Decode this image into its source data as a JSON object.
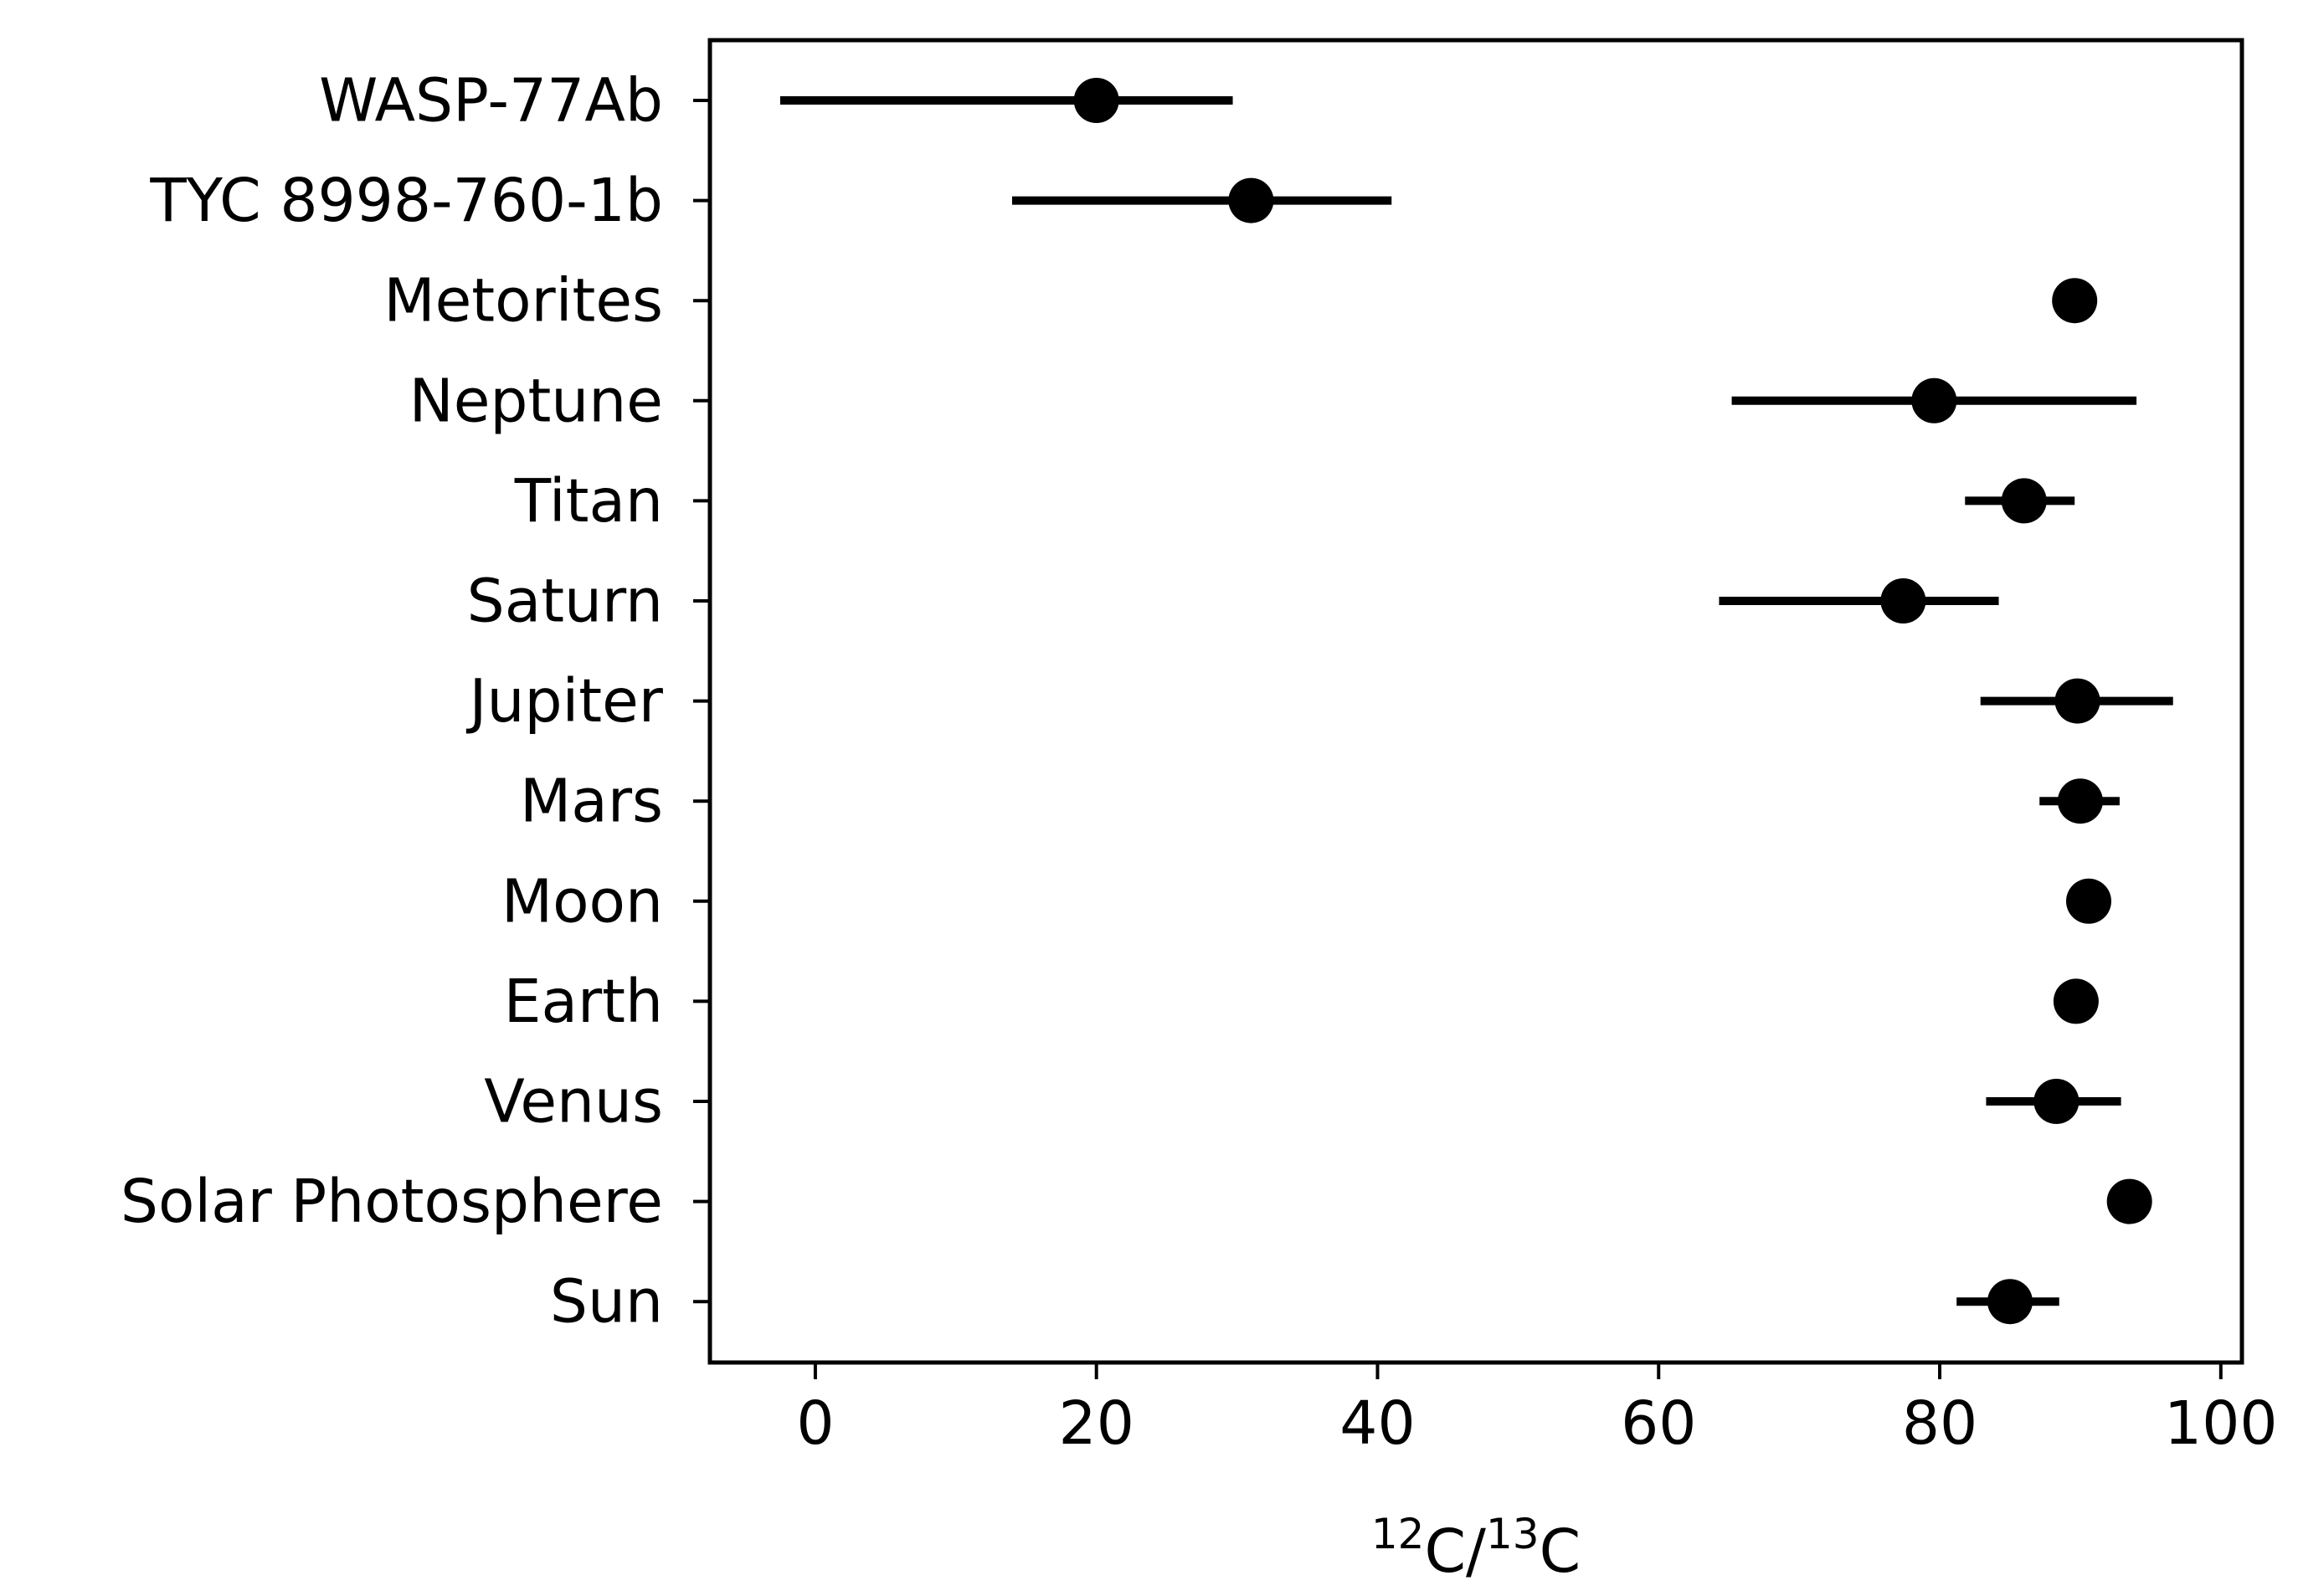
{
  "chart_data": {
    "type": "scatter",
    "orientation": "horizontal",
    "xlabel": {
      "parts": [
        {
          "text": "12",
          "sup": true
        },
        {
          "text": "C/",
          "sup": false
        },
        {
          "text": "13",
          "sup": true
        },
        {
          "text": "C",
          "sup": false
        }
      ]
    },
    "ylabel": "",
    "xlim": [
      -7.5,
      101.5
    ],
    "xticks": [
      {
        "value": 0,
        "label": "0"
      },
      {
        "value": 20,
        "label": "20"
      },
      {
        "value": 40,
        "label": "40"
      },
      {
        "value": 60,
        "label": "60"
      },
      {
        "value": 80,
        "label": "80"
      },
      {
        "value": 100,
        "label": "100"
      }
    ],
    "grid": false,
    "legend": "none",
    "colors": {
      "marker": "#000000",
      "errorbar": "#000000",
      "frame": "#000000"
    },
    "categories": [
      "WASP-77Ab",
      "TYC 8998-760-1b",
      "Metorites",
      "Neptune",
      "Titan",
      "Saturn",
      "Jupiter",
      "Mars",
      "Moon",
      "Earth",
      "Venus",
      "Solar Photosphere",
      "Sun"
    ],
    "points": [
      {
        "label": "WASP-77Ab",
        "x": 20,
        "xerr_low": 22.5,
        "xerr_high": 9.7
      },
      {
        "label": "TYC 8998-760-1b",
        "x": 31,
        "xerr_low": 17,
        "xerr_high": 10
      },
      {
        "label": "Metorites",
        "x": 89.6,
        "xerr_low": 0,
        "xerr_high": 0
      },
      {
        "label": "Neptune",
        "x": 79.6,
        "xerr_low": 14.4,
        "xerr_high": 14.4
      },
      {
        "label": "Titan",
        "x": 86,
        "xerr_low": 4.2,
        "xerr_high": 3.6
      },
      {
        "label": "Saturn",
        "x": 77.4,
        "xerr_low": 13.1,
        "xerr_high": 6.8
      },
      {
        "label": "Jupiter",
        "x": 89.8,
        "xerr_low": 6.9,
        "xerr_high": 6.8
      },
      {
        "label": "Mars",
        "x": 90,
        "xerr_low": 2.9,
        "xerr_high": 2.8
      },
      {
        "label": "Moon",
        "x": 90.6,
        "xerr_low": 0,
        "xerr_high": 0
      },
      {
        "label": "Earth",
        "x": 89.7,
        "xerr_low": 0,
        "xerr_high": 0
      },
      {
        "label": "Venus",
        "x": 88.3,
        "xerr_low": 5,
        "xerr_high": 4.6
      },
      {
        "label": "Solar Photosphere",
        "x": 93.5,
        "xerr_low": 0,
        "xerr_high": 0
      },
      {
        "label": "Sun",
        "x": 85,
        "xerr_low": 3.8,
        "xerr_high": 3.5
      }
    ]
  }
}
